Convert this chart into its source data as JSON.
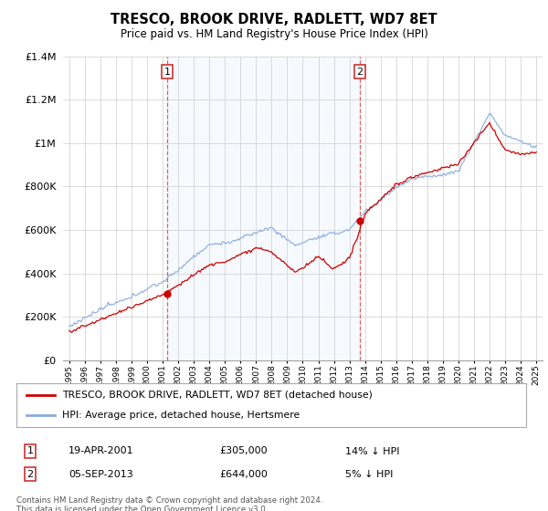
{
  "title": "TRESCO, BROOK DRIVE, RADLETT, WD7 8ET",
  "subtitle": "Price paid vs. HM Land Registry's House Price Index (HPI)",
  "legend_line1": "TRESCO, BROOK DRIVE, RADLETT, WD7 8ET (detached house)",
  "legend_line2": "HPI: Average price, detached house, Hertsmere",
  "footnote1": "Contains HM Land Registry data © Crown copyright and database right 2024.",
  "footnote2": "This data is licensed under the Open Government Licence v3.0.",
  "sale1_label": "1",
  "sale1_date": "19-APR-2001",
  "sale1_price": "£305,000",
  "sale1_hpi": "14% ↓ HPI",
  "sale1_year": 2001.29,
  "sale1_value": 305000,
  "sale2_label": "2",
  "sale2_date": "05-SEP-2013",
  "sale2_price": "£644,000",
  "sale2_hpi": "5% ↓ HPI",
  "sale2_year": 2013.67,
  "sale2_value": 644000,
  "red_color": "#cc0000",
  "blue_color": "#88aadd",
  "shade_color": "#ddeeff",
  "grid_color": "#cccccc",
  "background_color": "#ffffff",
  "dashed_color": "#dd4444",
  "ylim": [
    0,
    1400000
  ],
  "xlim": [
    1994.6,
    2025.4
  ]
}
